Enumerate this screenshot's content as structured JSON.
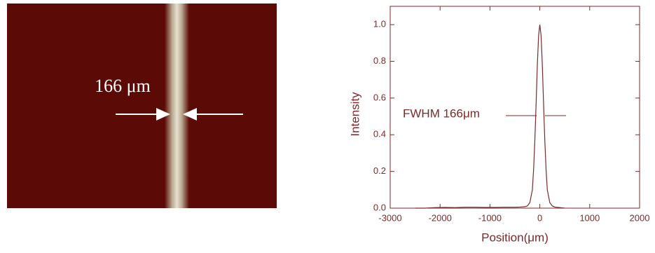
{
  "image": {
    "label": "166 μm"
  },
  "chart_data": {
    "type": "line",
    "x_label": "Position(μm)",
    "y_label": "Intensity",
    "annotation": "FWHM 166μm",
    "color": "#7a2a2a",
    "x": [
      -2500,
      -2300,
      -2100,
      -1900,
      -1700,
      -1500,
      -1300,
      -1100,
      -900,
      -700,
      -500,
      -400,
      -300,
      -250,
      -200,
      -150,
      -125,
      -100,
      -83,
      -50,
      -25,
      0,
      25,
      50,
      83,
      100,
      125,
      150,
      200,
      250,
      300,
      400,
      500
    ],
    "values": [
      0.0,
      0.0,
      0.003,
      0.004,
      0.003,
      0.005,
      0.005,
      0.004,
      0.004,
      0.005,
      0.005,
      0.006,
      0.008,
      0.012,
      0.03,
      0.1,
      0.21,
      0.37,
      0.5,
      0.78,
      0.94,
      1.0,
      0.94,
      0.78,
      0.5,
      0.37,
      0.21,
      0.1,
      0.03,
      0.012,
      0.006,
      0.003,
      0.0
    ],
    "xlim": [
      -3000,
      2000
    ],
    "ylim": [
      0,
      1.1
    ],
    "xticks": [
      -3000,
      -2000,
      -1000,
      0,
      1000,
      2000
    ],
    "yticks": [
      {
        "value": 0,
        "label": "0.0"
      },
      0.2,
      0.4,
      0.6,
      0.8,
      {
        "value": 1,
        "label": "1.0"
      }
    ]
  }
}
